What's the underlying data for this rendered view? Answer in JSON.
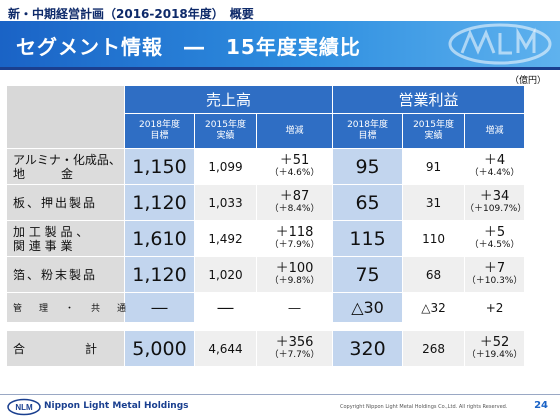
{
  "header": {
    "top_title": "新・中期経営計画（2016-2018年度）　概要",
    "banner_title": "セグメント情報　―　15年度実績比"
  },
  "unit": "（億円）",
  "table": {
    "groups": {
      "sales": "売上高",
      "op_income": "営業利益"
    },
    "subheaders": {
      "target_l1": "2018年度",
      "target_l2": "目標",
      "actual_l1": "2015年度",
      "actual_l2": "実績",
      "change": "増減"
    },
    "rows": [
      {
        "label_l1": "アルミナ・化成品、",
        "label_l2": "地　　　金",
        "sales_target": "1,150",
        "sales_actual": "1,099",
        "sales_change": "＋51",
        "sales_change_pct": "（＋4.6%）",
        "op_target": "95",
        "op_actual": "91",
        "op_change": "＋4",
        "op_change_pct": "（＋4.4%）"
      },
      {
        "label_l1": "板、押出製品",
        "sales_target": "1,120",
        "sales_actual": "1,033",
        "sales_change": "＋87",
        "sales_change_pct": "（＋8.4%）",
        "op_target": "65",
        "op_actual": "31",
        "op_change": "＋34",
        "op_change_pct": "（＋109.7%）"
      },
      {
        "label_l1": "加 工 製 品 、",
        "label_l2": "関 連 事 業",
        "sales_target": "1,610",
        "sales_actual": "1,492",
        "sales_change": "＋118",
        "sales_change_pct": "（＋7.9%）",
        "op_target": "115",
        "op_actual": "110",
        "op_change": "＋5",
        "op_change_pct": "（＋4.5%）"
      },
      {
        "label_l1": "箔、粉末製品",
        "sales_target": "1,120",
        "sales_actual": "1,020",
        "sales_change": "＋100",
        "sales_change_pct": "（＋9.8%）",
        "op_target": "75",
        "op_actual": "68",
        "op_change": "＋7",
        "op_change_pct": "（＋10.3%）"
      },
      {
        "label_l1": "管　理　・　共　通",
        "sales_target": "―",
        "sales_actual": "―",
        "sales_change": "―",
        "op_target": "△30",
        "op_actual": "△32",
        "op_change": "+2"
      }
    ],
    "total": {
      "label": "合　　　　　計",
      "sales_target": "5,000",
      "sales_actual": "4,644",
      "sales_change": "＋356",
      "sales_change_pct": "（＋7.7%）",
      "op_target": "320",
      "op_actual": "268",
      "op_change": "＋52",
      "op_change_pct": "（＋19.4%）"
    }
  },
  "footer": {
    "logo_text": "NLM",
    "company": "Nippon Light Metal Holdings",
    "copyright": "Copyright Nippon Light Metal Holdings Co.,Ltd. All rights Reserved.",
    "page_number": "24"
  },
  "colors": {
    "banner": "#2f8fe0",
    "header_cell": "#2f6ec4",
    "target_column": "#c2d5ee",
    "label_column": "#dcdcdc"
  }
}
